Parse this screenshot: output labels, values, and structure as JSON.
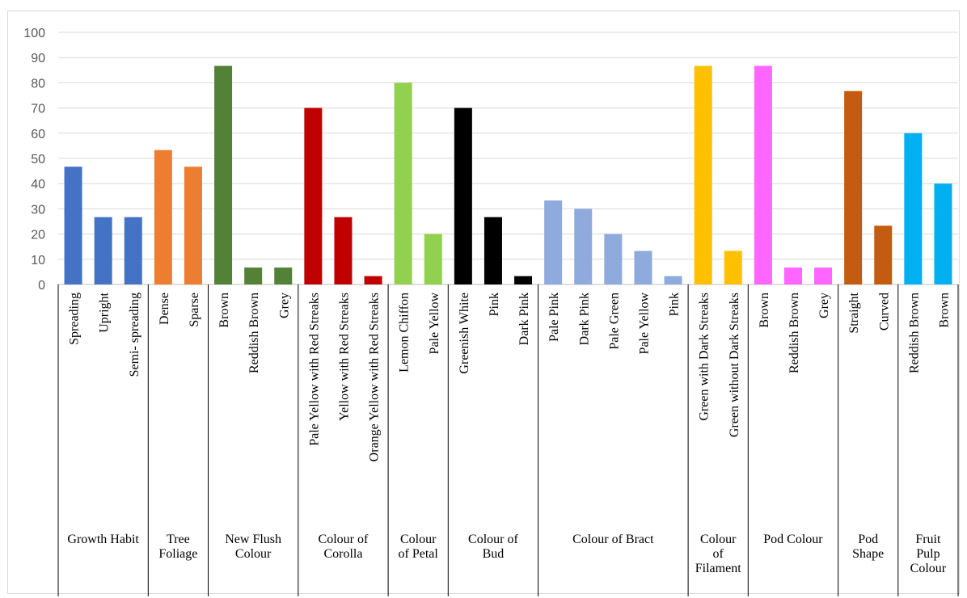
{
  "chart_data": {
    "type": "bar",
    "title": "",
    "xlabel": "",
    "ylabel": "",
    "ylim": [
      0,
      100
    ],
    "ytick_step": 10,
    "grid": true,
    "legend": "none",
    "yticks": [
      "0",
      "10",
      "20",
      "30",
      "40",
      "50",
      "60",
      "70",
      "80",
      "90",
      "100"
    ],
    "groups": [
      {
        "label_lines": [
          "Growth Habit"
        ],
        "color": "#4472C4",
        "categories": [
          "Spreading",
          "Upright",
          "Semi- spreading"
        ],
        "values": [
          46.7,
          26.7,
          26.7
        ]
      },
      {
        "label_lines": [
          "Tree",
          "Foliage"
        ],
        "color": "#ED7D31",
        "categories": [
          "Dense",
          "Sparse"
        ],
        "values": [
          53.3,
          46.7
        ]
      },
      {
        "label_lines": [
          "New Flush",
          "Colour"
        ],
        "color": "#538135",
        "categories": [
          "Brown",
          "Reddish Brown",
          "Grey"
        ],
        "values": [
          86.7,
          6.7,
          6.7
        ]
      },
      {
        "label_lines": [
          "Colour of",
          "Corolla"
        ],
        "color": "#C00000",
        "categories": [
          "Pale Yellow with Red Streaks",
          "Yellow with Red Streaks",
          "Orange Yellow with Red Streaks"
        ],
        "values": [
          70,
          26.7,
          3.3
        ]
      },
      {
        "label_lines": [
          "Colour",
          "of Petal"
        ],
        "color": "#92D050",
        "categories": [
          "Lemon Chiffon",
          "Pale Yellow"
        ],
        "values": [
          80,
          20
        ]
      },
      {
        "label_lines": [
          "Colour of",
          "Bud"
        ],
        "color": "#000000",
        "categories": [
          "Greenish White",
          "Pink",
          "Dark Pink"
        ],
        "values": [
          70,
          26.7,
          3.3
        ]
      },
      {
        "label_lines": [
          "Colour of Bract"
        ],
        "color": "#8FAADC",
        "categories": [
          "Pale Pink",
          "Dark Pink",
          "Pale Green",
          "Pale Yellow",
          "Pink"
        ],
        "values": [
          33.3,
          30,
          20,
          13.3,
          3.3
        ]
      },
      {
        "label_lines": [
          "Colour",
          "of",
          "Filament"
        ],
        "color": "#FFC000",
        "categories": [
          "Green with Dark Streaks",
          "Green without Dark Streaks"
        ],
        "values": [
          86.7,
          13.3
        ]
      },
      {
        "label_lines": [
          "Pod Colour"
        ],
        "color": "#FF66FF",
        "categories": [
          "Brown",
          "Reddish Brown",
          "Grey"
        ],
        "values": [
          86.7,
          6.7,
          6.7
        ]
      },
      {
        "label_lines": [
          "Pod",
          "Shape"
        ],
        "color": "#C55A11",
        "categories": [
          "Straight",
          "Curved"
        ],
        "values": [
          76.7,
          23.3
        ]
      },
      {
        "label_lines": [
          "Fruit",
          "Pulp",
          "Colour"
        ],
        "color": "#00B0F0",
        "categories": [
          "Reddish Brown",
          "Brown"
        ],
        "values": [
          60,
          40
        ]
      }
    ]
  }
}
